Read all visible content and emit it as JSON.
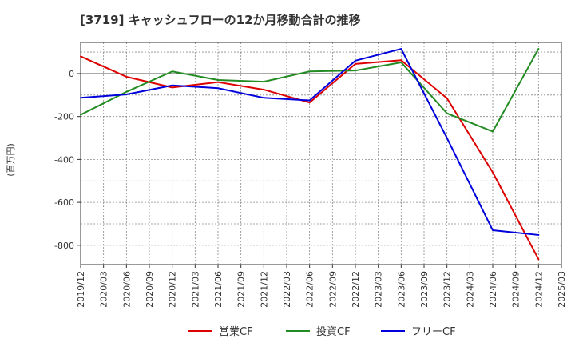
{
  "chart_data": {
    "type": "line",
    "title": "[3719]  キャッシュフローの12か月移動合計の推移",
    "ylabel": "(百万円)",
    "xlabel": "",
    "ylim": [
      -890,
      145
    ],
    "yticks": [
      0,
      -200,
      -400,
      -600,
      -800
    ],
    "ytick_labels": [
      "0",
      "-200",
      "-400",
      "-600",
      "-800"
    ],
    "xticks": [
      "2019/12",
      "2020/03",
      "2020/06",
      "2020/09",
      "2020/12",
      "2021/03",
      "2021/06",
      "2021/09",
      "2021/12",
      "2022/03",
      "2022/06",
      "2022/09",
      "2022/12",
      "2023/03",
      "2023/06",
      "2023/09",
      "2023/12",
      "2024/03",
      "2024/06",
      "2024/09",
      "2024/12",
      "2025/03"
    ],
    "grid": true,
    "legend_position": "bottom",
    "series": [
      {
        "name": "営業CF",
        "color": "#dd0000",
        "points": [
          {
            "x": "2019/12",
            "y": 80
          },
          {
            "x": "2020/06",
            "y": -15
          },
          {
            "x": "2020/12",
            "y": -65
          },
          {
            "x": "2021/06",
            "y": -40
          },
          {
            "x": "2021/12",
            "y": -75
          },
          {
            "x": "2022/06",
            "y": -135
          },
          {
            "x": "2022/12",
            "y": 45
          },
          {
            "x": "2023/06",
            "y": 62
          },
          {
            "x": "2023/12",
            "y": -115
          },
          {
            "x": "2024/06",
            "y": -460
          },
          {
            "x": "2024/12",
            "y": -865
          }
        ]
      },
      {
        "name": "投資CF",
        "color": "#228b22",
        "points": [
          {
            "x": "2019/12",
            "y": -192
          },
          {
            "x": "2020/06",
            "y": -85
          },
          {
            "x": "2020/12",
            "y": 10
          },
          {
            "x": "2021/06",
            "y": -30
          },
          {
            "x": "2021/12",
            "y": -38
          },
          {
            "x": "2022/06",
            "y": 10
          },
          {
            "x": "2022/12",
            "y": 14
          },
          {
            "x": "2023/06",
            "y": 52
          },
          {
            "x": "2023/12",
            "y": -185
          },
          {
            "x": "2024/06",
            "y": -270
          },
          {
            "x": "2024/12",
            "y": 115
          }
        ]
      },
      {
        "name": "フリーCF",
        "color": "#0000dd",
        "points": [
          {
            "x": "2019/12",
            "y": -113
          },
          {
            "x": "2020/06",
            "y": -97
          },
          {
            "x": "2020/12",
            "y": -55
          },
          {
            "x": "2021/06",
            "y": -68
          },
          {
            "x": "2021/12",
            "y": -113
          },
          {
            "x": "2022/06",
            "y": -125
          },
          {
            "x": "2022/12",
            "y": 60
          },
          {
            "x": "2023/06",
            "y": 115
          },
          {
            "x": "2023/12",
            "y": -300
          },
          {
            "x": "2024/06",
            "y": -730
          },
          {
            "x": "2024/12",
            "y": -752
          }
        ]
      }
    ]
  }
}
